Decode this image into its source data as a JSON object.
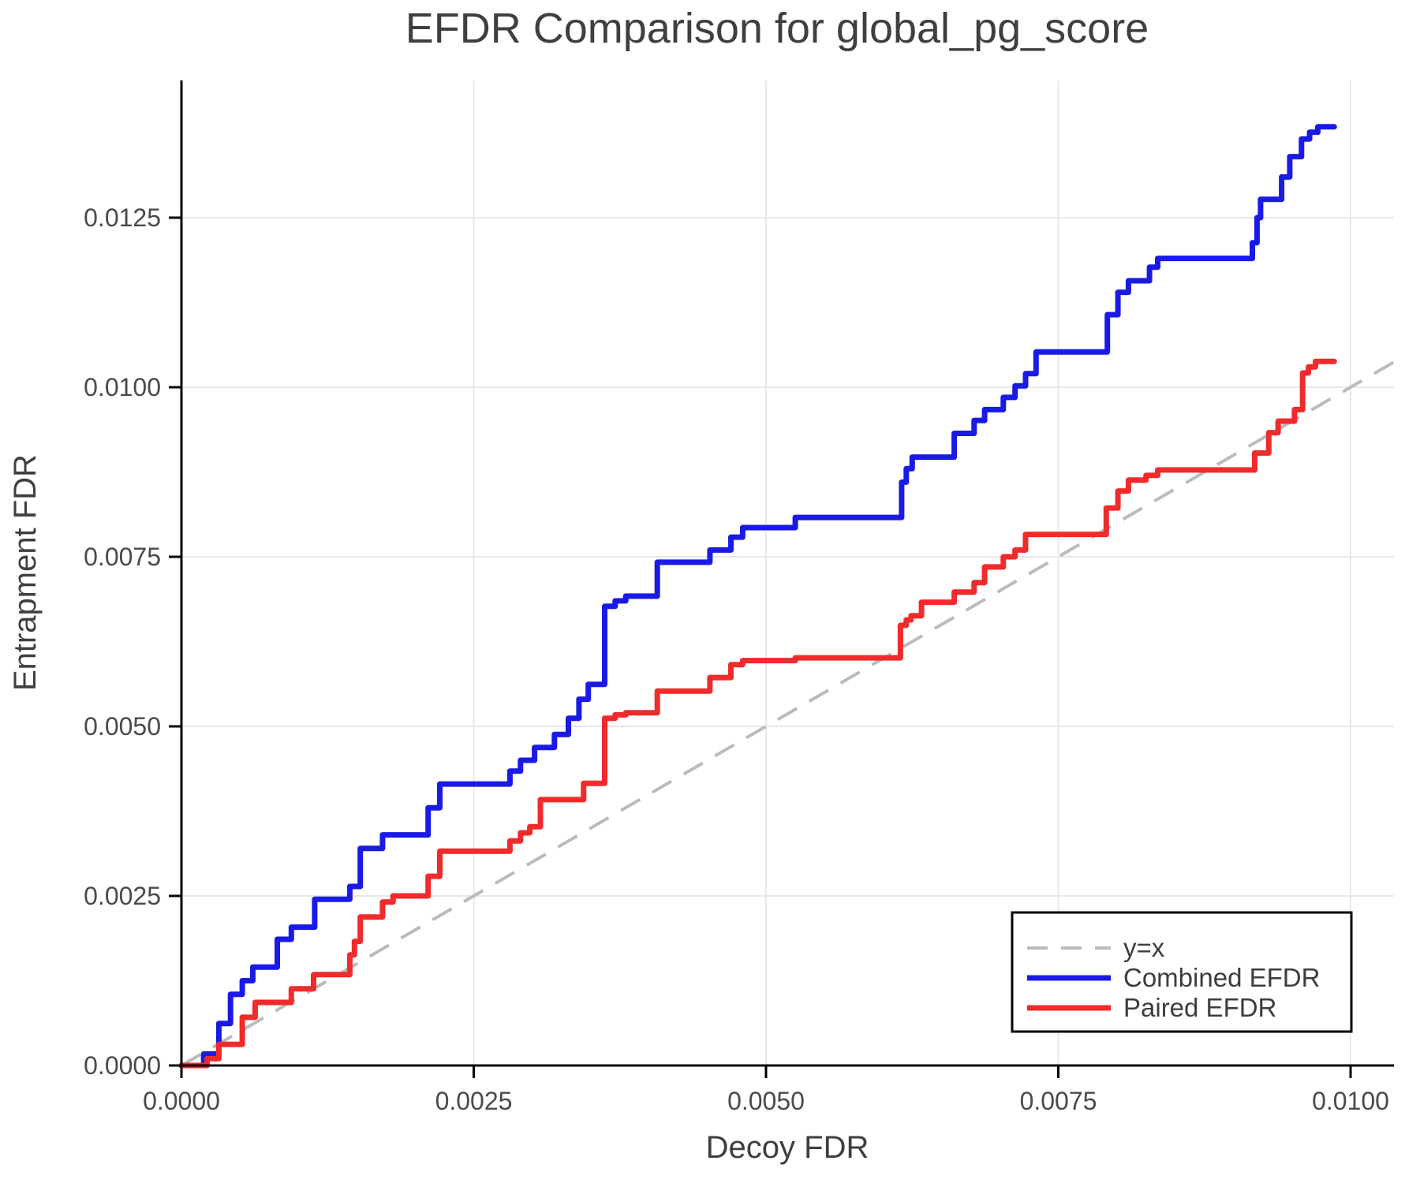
{
  "figure": {
    "background": "#FFFFFF"
  },
  "chart_data": {
    "type": "line",
    "title": "EFDR Comparison for global_pg_score",
    "xlabel": "Decoy FDR",
    "ylabel": "Entrapment FDR",
    "xlim": [
      0.0,
      0.010371
    ],
    "ylim": [
      0.0,
      0.014523
    ],
    "grid": true,
    "legend_position": "bottom-right",
    "x_ticks": {
      "values": [
        0.0,
        0.0025,
        0.005,
        0.0075,
        0.01
      ],
      "labels": [
        "0.0000",
        "0.0025",
        "0.0050",
        "0.0075",
        "0.0100"
      ]
    },
    "y_ticks": {
      "values": [
        0.0,
        0.0025,
        0.005,
        0.0075,
        0.01,
        0.0125
      ],
      "labels": [
        "0.0000",
        "0.0025",
        "0.0050",
        "0.0075",
        "0.0100",
        "0.0125"
      ]
    },
    "colors": {
      "grid": "#E8E8E8",
      "axis": "#000000",
      "text": "#3F3F3F",
      "reference": "#BBBBBB",
      "combined": "#1A1AE6",
      "paired": "#F02B2B"
    },
    "reference_line": {
      "name": "y=x",
      "style": "dashed",
      "color": "#BBBBBB",
      "points": [
        [
          0.0,
          0.0
        ],
        [
          0.010371,
          0.010371
        ]
      ]
    },
    "series": [
      {
        "name": "Combined EFDR",
        "color": "#1A1AE6",
        "style": "step",
        "points": [
          [
            0.0,
            0.0
          ],
          [
            0.00019,
            0.00017
          ],
          [
            0.00032,
            0.00062
          ],
          [
            0.00042,
            0.00105
          ],
          [
            0.00052,
            0.00125
          ],
          [
            0.00061,
            0.00145
          ],
          [
            0.00082,
            0.00186
          ],
          [
            0.00094,
            0.00204
          ],
          [
            0.00114,
            0.00245
          ],
          [
            0.00144,
            0.00264
          ],
          [
            0.00153,
            0.0032
          ],
          [
            0.00172,
            0.0034
          ],
          [
            0.00211,
            0.0038
          ],
          [
            0.00221,
            0.00415
          ],
          [
            0.00281,
            0.00434
          ],
          [
            0.0029,
            0.0045
          ],
          [
            0.00302,
            0.00469
          ],
          [
            0.00319,
            0.00488
          ],
          [
            0.00331,
            0.00512
          ],
          [
            0.0034,
            0.0054
          ],
          [
            0.00348,
            0.00562
          ],
          [
            0.00362,
            0.00677
          ],
          [
            0.00371,
            0.00685
          ],
          [
            0.0038,
            0.00692
          ],
          [
            0.00407,
            0.00742
          ],
          [
            0.00452,
            0.0076
          ],
          [
            0.0047,
            0.00779
          ],
          [
            0.0048,
            0.00793
          ],
          [
            0.00525,
            0.00808
          ],
          [
            0.00616,
            0.0086
          ],
          [
            0.0062,
            0.0088
          ],
          [
            0.00625,
            0.00897
          ],
          [
            0.00661,
            0.00932
          ],
          [
            0.00678,
            0.00951
          ],
          [
            0.00687,
            0.00967
          ],
          [
            0.00703,
            0.00985
          ],
          [
            0.00713,
            0.01002
          ],
          [
            0.00722,
            0.0102
          ],
          [
            0.00731,
            0.01052
          ],
          [
            0.00792,
            0.01107
          ],
          [
            0.00801,
            0.0114
          ],
          [
            0.0081,
            0.01157
          ],
          [
            0.00828,
            0.01177
          ],
          [
            0.00835,
            0.0119
          ],
          [
            0.00916,
            0.01213
          ],
          [
            0.0092,
            0.0125
          ],
          [
            0.00923,
            0.01277
          ],
          [
            0.00941,
            0.0131
          ],
          [
            0.00948,
            0.0134
          ],
          [
            0.00958,
            0.01366
          ],
          [
            0.00965,
            0.01376
          ],
          [
            0.00972,
            0.01384
          ],
          [
            0.00986,
            0.01384
          ]
        ]
      },
      {
        "name": "Paired EFDR",
        "color": "#F02B2B",
        "style": "step",
        "points": [
          [
            0.0,
            0.0
          ],
          [
            0.00022,
            0.0001
          ],
          [
            0.00032,
            0.00031
          ],
          [
            0.00052,
            0.00071
          ],
          [
            0.00063,
            0.00093
          ],
          [
            0.00094,
            0.00113
          ],
          [
            0.00113,
            0.00134
          ],
          [
            0.00144,
            0.00163
          ],
          [
            0.00148,
            0.00183
          ],
          [
            0.00153,
            0.00219
          ],
          [
            0.00172,
            0.00241
          ],
          [
            0.00181,
            0.0025
          ],
          [
            0.00211,
            0.00279
          ],
          [
            0.00221,
            0.00316
          ],
          [
            0.00281,
            0.00331
          ],
          [
            0.0029,
            0.00343
          ],
          [
            0.00298,
            0.00352
          ],
          [
            0.00307,
            0.00392
          ],
          [
            0.00344,
            0.00416
          ],
          [
            0.00362,
            0.00512
          ],
          [
            0.00371,
            0.00517
          ],
          [
            0.0038,
            0.0052
          ],
          [
            0.00407,
            0.00552
          ],
          [
            0.00452,
            0.00572
          ],
          [
            0.0047,
            0.00591
          ],
          [
            0.0048,
            0.00597
          ],
          [
            0.00525,
            0.00601
          ],
          [
            0.00615,
            0.00649
          ],
          [
            0.0062,
            0.00657
          ],
          [
            0.00624,
            0.00663
          ],
          [
            0.00633,
            0.00683
          ],
          [
            0.00661,
            0.00698
          ],
          [
            0.00678,
            0.00712
          ],
          [
            0.00687,
            0.00735
          ],
          [
            0.00703,
            0.0075
          ],
          [
            0.00713,
            0.0076
          ],
          [
            0.00722,
            0.00783
          ],
          [
            0.00791,
            0.00822
          ],
          [
            0.00801,
            0.00847
          ],
          [
            0.0081,
            0.00863
          ],
          [
            0.00825,
            0.0087
          ],
          [
            0.00835,
            0.00878
          ],
          [
            0.00918,
            0.00903
          ],
          [
            0.0093,
            0.00933
          ],
          [
            0.00938,
            0.0095
          ],
          [
            0.00952,
            0.00967
          ],
          [
            0.00959,
            0.01021
          ],
          [
            0.00964,
            0.0103
          ],
          [
            0.0097,
            0.01038
          ],
          [
            0.00986,
            0.01038
          ]
        ]
      }
    ],
    "legend": {
      "entries": [
        "y=x",
        "Combined EFDR",
        "Paired EFDR"
      ]
    }
  }
}
